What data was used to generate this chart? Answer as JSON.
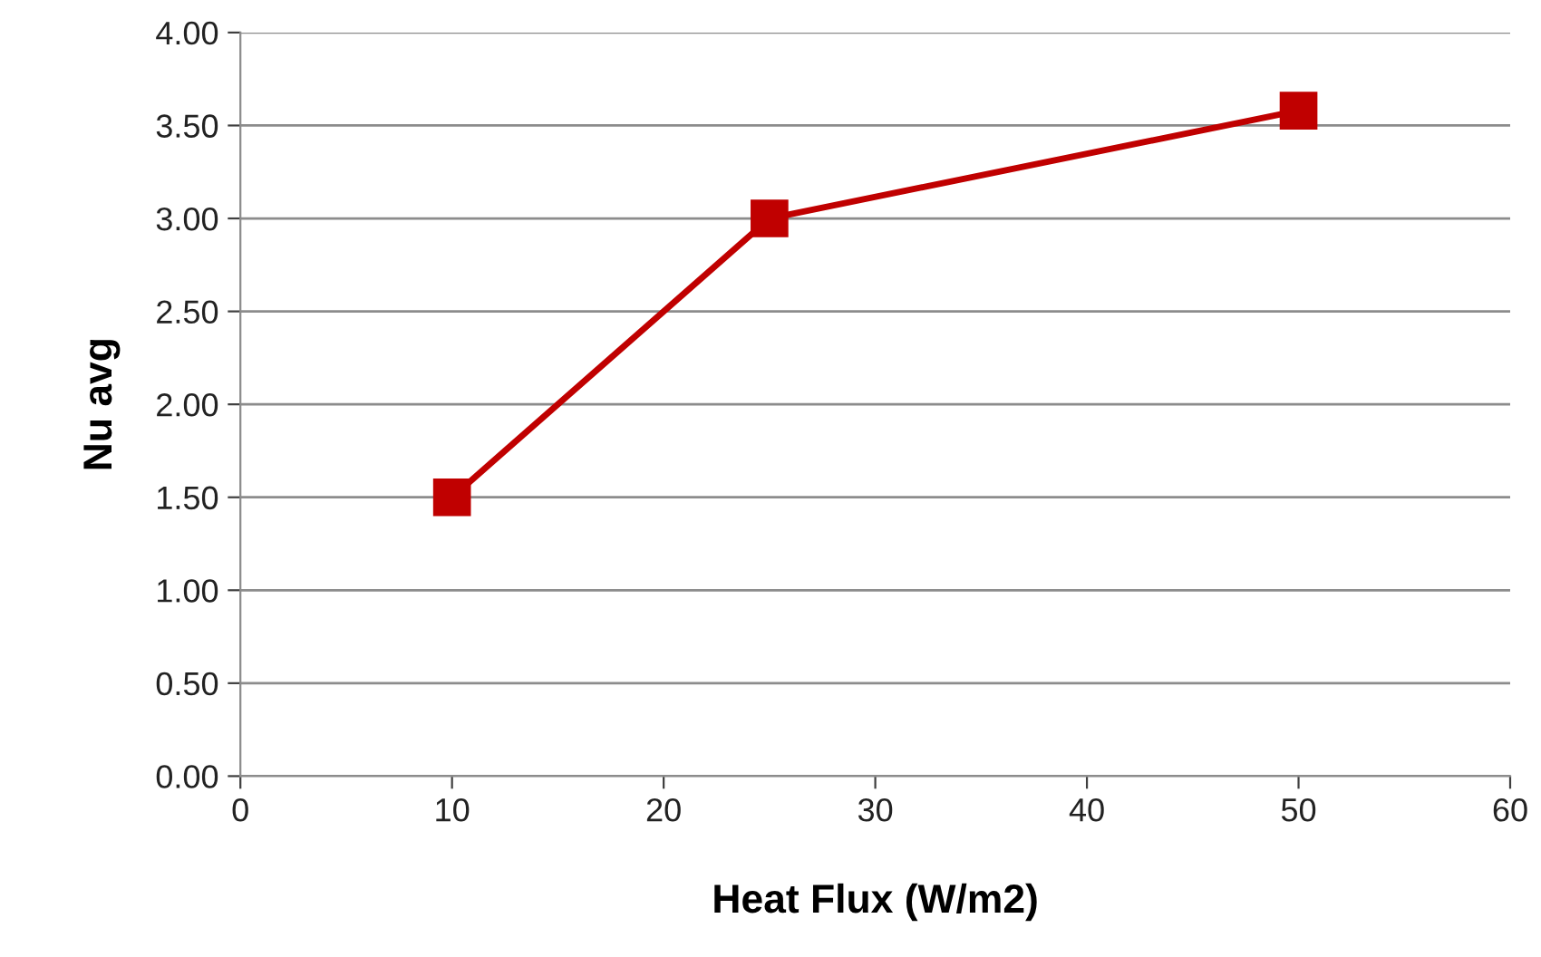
{
  "chart_data": {
    "type": "line",
    "xlabel": "Heat Flux (W/m2)",
    "ylabel": "Nu avg",
    "x": [
      10,
      25,
      50
    ],
    "series": [
      {
        "color": "#c00000",
        "values": [
          1.5,
          3.0,
          3.58
        ]
      }
    ],
    "xlim": [
      0,
      60
    ],
    "xticks": [
      0,
      10,
      20,
      30,
      40,
      50,
      60
    ],
    "ylim": [
      0,
      4
    ],
    "yticks": [
      {
        "value": 0,
        "label": "0.00"
      },
      {
        "value": 0.5,
        "label": "0.50"
      },
      {
        "value": 1,
        "label": "1.00"
      },
      {
        "value": 1.5,
        "label": "1.50"
      },
      {
        "value": 2,
        "label": "2.00"
      },
      {
        "value": 2.5,
        "label": "2.50"
      },
      {
        "value": 3,
        "label": "3.00"
      },
      {
        "value": 3.5,
        "label": "3.50"
      },
      {
        "value": 4,
        "label": "4.00"
      }
    ],
    "grid": "y",
    "marker": "square",
    "line_style": "solid",
    "legend": false
  }
}
